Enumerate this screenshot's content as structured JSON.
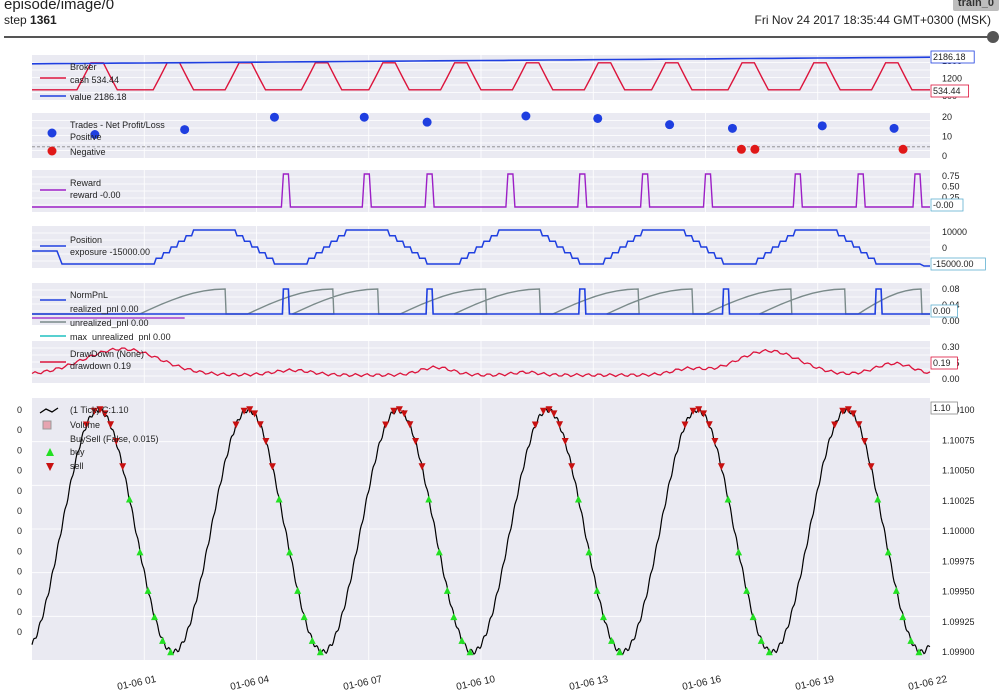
{
  "header": {
    "title": "episode/image/0",
    "step_label": "step",
    "step_value": "1361",
    "run_tag": "train_0",
    "timestamp": "Fri Nov 24 2017 18:35:44 GMT+0300 (MSK)"
  },
  "colors": {
    "panel_bg": "#eaeaf2",
    "cash": "#dc143c",
    "value": "#1f3fe0",
    "reward": "#9c1fc6",
    "price": "#000000",
    "buy": "#22e022",
    "sell": "#c81010",
    "unrealized": "#7a8a8a",
    "max_unrealized": "#20c0c0"
  },
  "chart_data": [
    {
      "type": "line",
      "panel": "broker",
      "legend": [
        "Broker",
        "cash 534.44",
        "value 2186.18"
      ],
      "y_ticks": [
        "1800",
        "1200",
        "600"
      ],
      "last_labels": [
        "2186.18",
        "534.44"
      ],
      "series": [
        {
          "name": "cash",
          "pattern": "plateau",
          "low": 520,
          "high": 1900
        },
        {
          "name": "value",
          "start": 1850,
          "end": 2186.18
        }
      ]
    },
    {
      "type": "scatter",
      "panel": "trades",
      "legend": [
        "Trades - Net Profit/Loss",
        "Positive",
        "Negative"
      ],
      "y_ticks": [
        "20",
        "10",
        "0"
      ],
      "positive_points": [
        [
          0.07,
          10
        ],
        [
          0.17,
          14
        ],
        [
          0.27,
          24
        ],
        [
          0.37,
          24
        ],
        [
          0.44,
          20
        ],
        [
          0.55,
          25
        ],
        [
          0.63,
          23
        ],
        [
          0.71,
          18
        ],
        [
          0.78,
          15
        ],
        [
          0.88,
          17
        ],
        [
          0.96,
          15
        ]
      ],
      "negative_points": [
        [
          0.79,
          -2
        ],
        [
          0.805,
          -2
        ],
        [
          0.97,
          -2
        ]
      ]
    },
    {
      "type": "line",
      "panel": "reward",
      "legend": [
        "Reward",
        "reward -0.00"
      ],
      "y_ticks": [
        "0.75",
        "0.50",
        "0.25",
        "0.00"
      ],
      "last_label": "-0.00",
      "spikes": [
        0.28,
        0.37,
        0.44,
        0.53,
        0.61,
        0.68,
        0.75,
        0.85,
        0.92,
        0.99
      ]
    },
    {
      "type": "line",
      "panel": "position",
      "legend": [
        "Position",
        "exposure -15000.00"
      ],
      "y_ticks": [
        "10000",
        "0",
        "-10000"
      ],
      "last_label": "-15000.00"
    },
    {
      "type": "line",
      "panel": "normpnl",
      "legend": [
        "NormPnL",
        "realized_pnl 0.00",
        "unrealized_pnl 0.00",
        "max_unrealized_pnl 0.00"
      ],
      "y_ticks": [
        "0.08",
        "0.04",
        "0.00"
      ],
      "last_label": "0.00"
    },
    {
      "type": "line",
      "panel": "drawdown",
      "legend": [
        "DrawDown (None)",
        "drawdown 0.19"
      ],
      "y_ticks": [
        "0.30",
        "0.15",
        "0.00"
      ],
      "last_label": "0.19"
    },
    {
      "type": "line",
      "panel": "price",
      "legend": [
        "(1 Tick) C:1.10",
        "Volume",
        "BuySell (False, 0.015)",
        "buy",
        "sell"
      ],
      "y_ticks": [
        "1.10100",
        "1.10075",
        "1.10050",
        "1.10025",
        "1.10000",
        "1.09975",
        "1.09950",
        "1.09925",
        "1.09900"
      ],
      "left_ticks": [
        "0",
        "0",
        "0",
        "0",
        "0",
        "0",
        "0",
        "0",
        "0",
        "0",
        "0",
        "0"
      ],
      "ylim": [
        1.099,
        1.101
      ],
      "last_label": "1.10",
      "x_ticks": [
        "01-06 01",
        "01-06 04",
        "01-06 07",
        "01-06 10",
        "01-06 13",
        "01-06 16",
        "01-06 19",
        "01-06 22"
      ],
      "cycles": 6
    }
  ]
}
